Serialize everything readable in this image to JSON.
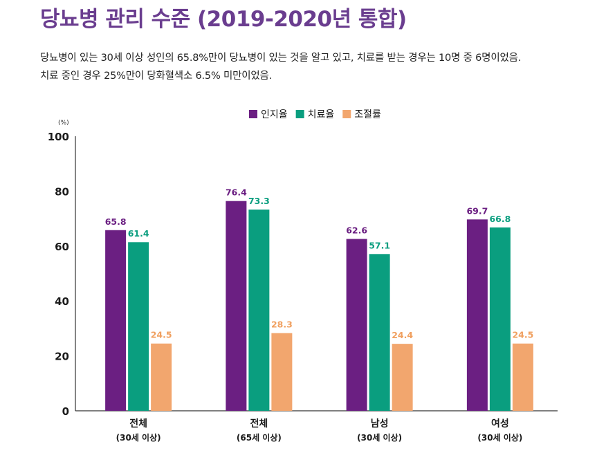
{
  "title": "당뇨병 관리 수준 (2019-2020년 통합)",
  "description": [
    "당뇨병이 있는 30세 이상 성인의 65.8%만이 당뇨병이 있는 것을 알고 있고, 치료를 받는 경우는 10명 중 6명이었음.",
    "치료 중인 경우 25%만이 당화혈색소 6.5% 미만이었음."
  ],
  "chart_data": {
    "type": "bar",
    "title": "",
    "ylabel": "(%)",
    "xlabel": "",
    "ylim": [
      0,
      100
    ],
    "yticks": [
      0,
      20,
      40,
      60,
      80,
      100
    ],
    "grid": false,
    "legend_position": "top-center",
    "categories": [
      {
        "label": "전체",
        "sublabel": "(30세 이상)"
      },
      {
        "label": "전체",
        "sublabel": "(65세 이상)"
      },
      {
        "label": "남성",
        "sublabel": "(30세 이상)"
      },
      {
        "label": "여성",
        "sublabel": "(30세 이상)"
      }
    ],
    "series": [
      {
        "name": "인지율",
        "color": "#6b1f82",
        "label_color": "#6b1f82",
        "values": [
          65.8,
          76.4,
          62.6,
          69.7
        ]
      },
      {
        "name": "치료율",
        "color": "#0a9e7f",
        "label_color": "#0a9e7f",
        "values": [
          61.4,
          73.3,
          57.1,
          66.8
        ]
      },
      {
        "name": "조절률",
        "color": "#f2a66e",
        "label_color": "#f0a060",
        "values": [
          24.5,
          28.3,
          24.4,
          24.5
        ]
      }
    ]
  }
}
